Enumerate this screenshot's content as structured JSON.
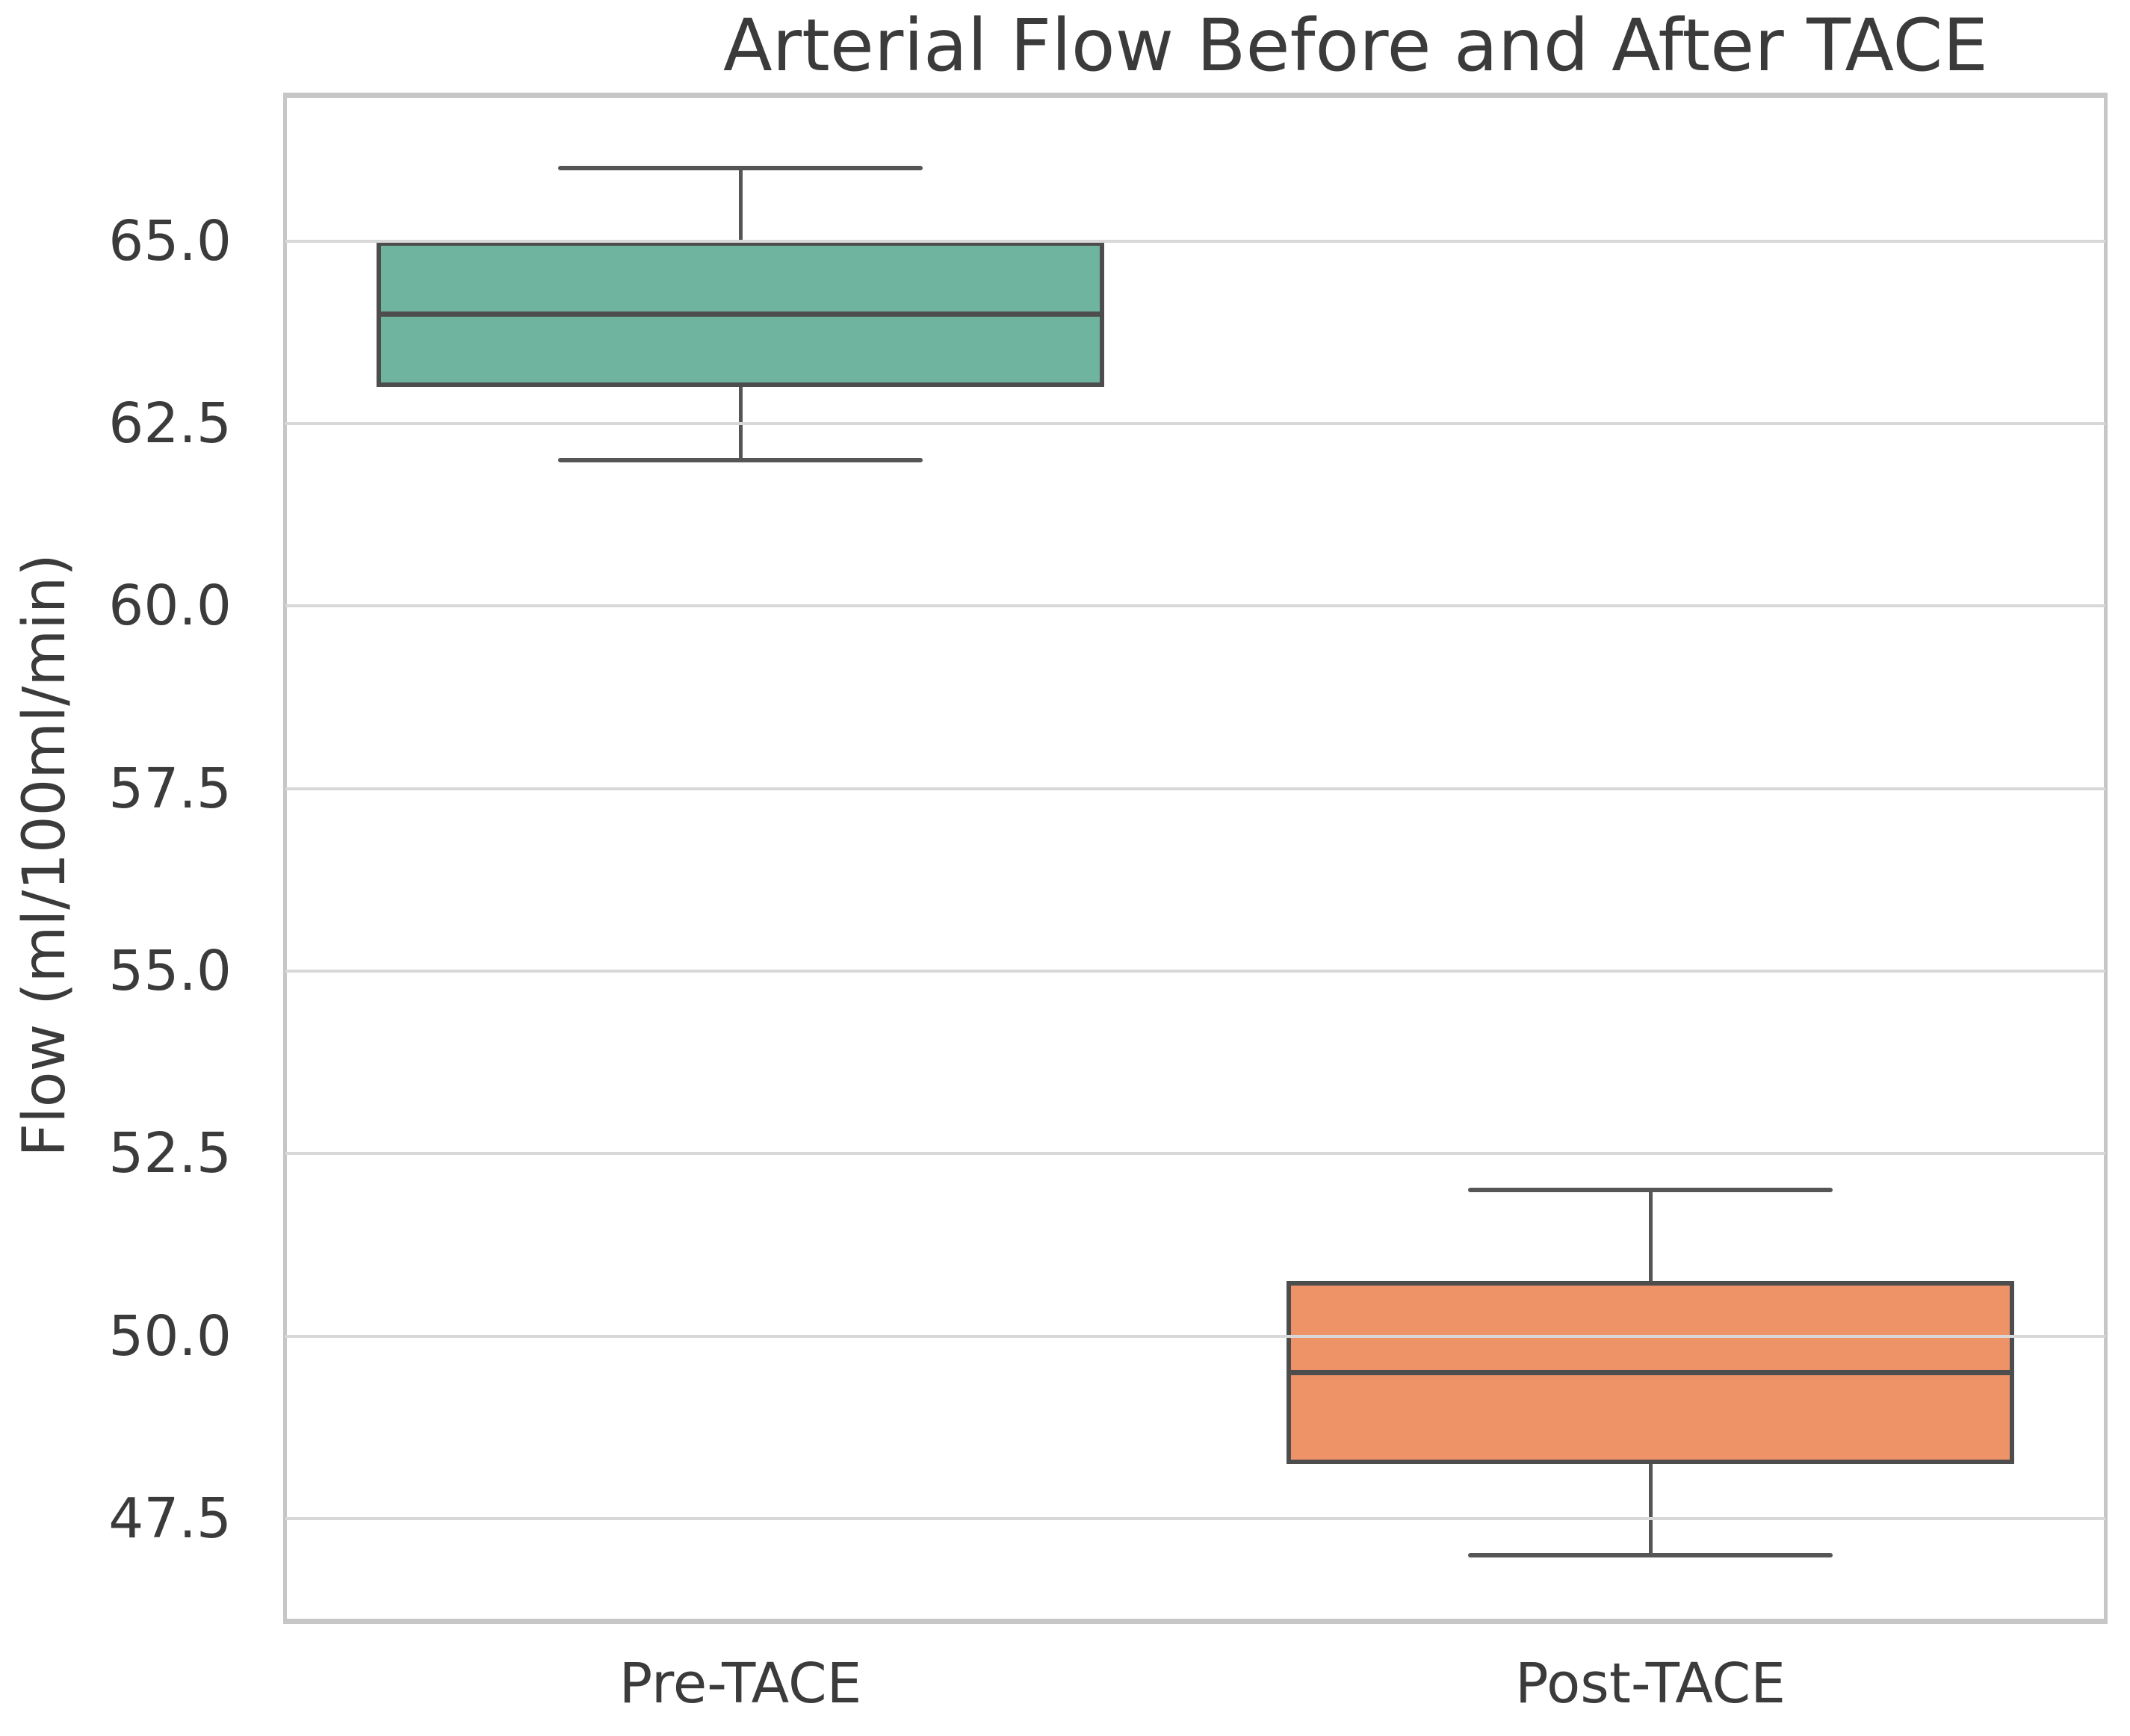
{
  "chart_data": {
    "type": "box",
    "title": "Arterial Flow Before and After TACE",
    "xlabel": "",
    "ylabel": "Flow (ml/100ml/min)",
    "categories": [
      "Pre-TACE",
      "Post-TACE"
    ],
    "series": [
      {
        "name": "Pre-TACE",
        "min": 62.0,
        "q1": 63.0,
        "median": 64.0,
        "q3": 65.0,
        "max": 66.0,
        "color": "#6fb49e"
      },
      {
        "name": "Post-TACE",
        "min": 47.0,
        "q1": 48.25,
        "median": 49.5,
        "q3": 50.75,
        "max": 52.0,
        "color": "#ee9268"
      }
    ],
    "yticks": [
      "65.0",
      "62.5",
      "60.0",
      "57.5",
      "55.0",
      "52.5",
      "50.0",
      "47.5"
    ],
    "ytick_values": [
      65.0,
      62.5,
      60.0,
      57.5,
      55.0,
      52.5,
      50.0,
      47.5
    ],
    "ylim": [
      46.1,
      67.0
    ],
    "grid": true,
    "legend": false,
    "colors": {
      "box_fill_pre": "#6fb49e",
      "box_fill_post": "#ee9268",
      "box_edge": "#4d4d4d",
      "whisker": "#555555",
      "gridline": "#d8d8d8",
      "spine": "#c6c6c6",
      "text": "#3b3b3b",
      "background": "#ffffff"
    }
  }
}
